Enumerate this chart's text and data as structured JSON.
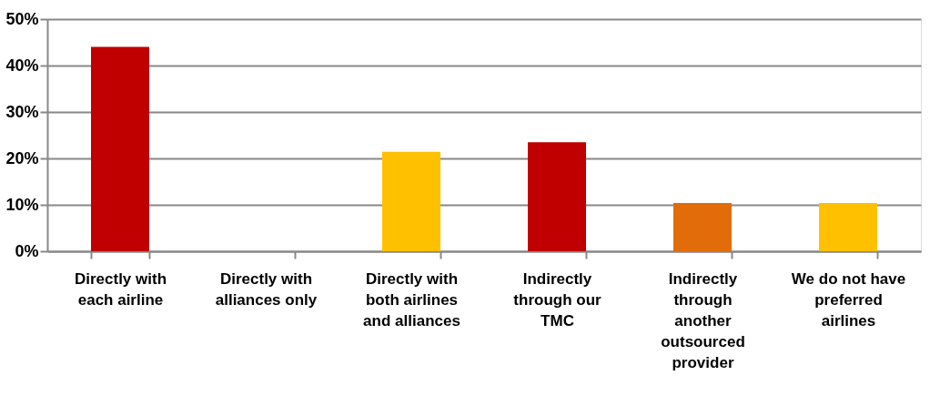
{
  "chart_data": {
    "type": "bar",
    "categories": [
      "Directly with each airline",
      "Directly with alliances only",
      "Directly with both airlines and alliances",
      "Indirectly through our TMC",
      "Indirectly through another outsourced provider",
      "We do not have preferred airlines"
    ],
    "values": [
      44,
      0,
      21.4,
      23.5,
      10.4,
      10.4
    ],
    "colors": [
      "#c00000",
      "#c00000",
      "#ffc000",
      "#c00000",
      "#e36c0a",
      "#ffc000"
    ],
    "ylim": [
      0,
      50
    ],
    "yticks": [
      {
        "value": 0,
        "label": "0%"
      },
      {
        "value": 10,
        "label": "10%"
      },
      {
        "value": 20,
        "label": "20%"
      },
      {
        "value": 30,
        "label": "30%"
      },
      {
        "value": 40,
        "label": "40%"
      },
      {
        "value": 50,
        "label": "50%"
      }
    ],
    "grid": "y"
  }
}
